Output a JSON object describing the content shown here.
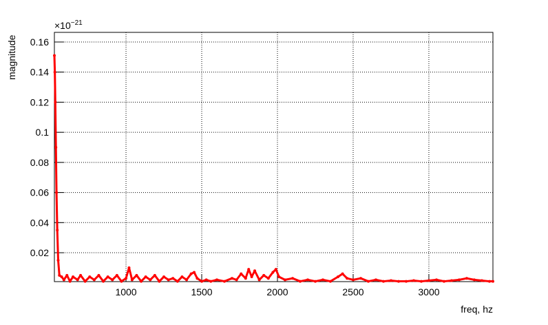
{
  "chart_data": {
    "type": "line",
    "x_label": "freq, hz",
    "y_label": "magnitude",
    "y_multiplier": {
      "base": "×10",
      "exponent": "−21"
    },
    "xlim": [
      527,
      3423
    ],
    "ylim": [
      0.0008,
      0.1664
    ],
    "xticks": [
      1000,
      1500,
      2000,
      2500,
      3000
    ],
    "yticks": [
      0.02,
      0.04,
      0.06,
      0.08,
      0.1,
      0.12,
      0.14,
      0.16
    ],
    "grid": true,
    "x": [
      527,
      530,
      533,
      537,
      541,
      546,
      552,
      560,
      575,
      590,
      610,
      630,
      650,
      680,
      700,
      730,
      760,
      790,
      820,
      850,
      880,
      910,
      940,
      970,
      1000,
      1020,
      1040,
      1070,
      1100,
      1130,
      1160,
      1190,
      1220,
      1250,
      1280,
      1310,
      1340,
      1370,
      1400,
      1430,
      1450,
      1470,
      1500,
      1530,
      1560,
      1600,
      1650,
      1700,
      1730,
      1760,
      1790,
      1810,
      1830,
      1850,
      1880,
      1910,
      1940,
      1970,
      1990,
      2010,
      2050,
      2100,
      2150,
      2200,
      2250,
      2300,
      2350,
      2400,
      2430,
      2460,
      2500,
      2550,
      2600,
      2650,
      2700,
      2750,
      2800,
      2850,
      2900,
      2950,
      3000,
      3050,
      3100,
      3150,
      3200,
      3250,
      3300,
      3350,
      3400,
      3423
    ],
    "series": [
      {
        "color": "#ff0000",
        "values": [
          0.151,
          0.14,
          0.12,
          0.09,
          0.06,
          0.035,
          0.015,
          0.005,
          0.004,
          0.002,
          0.005,
          0.001,
          0.004,
          0.002,
          0.005,
          0.001,
          0.004,
          0.002,
          0.005,
          0.001,
          0.004,
          0.002,
          0.005,
          0.001,
          0.003,
          0.01,
          0.002,
          0.005,
          0.001,
          0.004,
          0.002,
          0.005,
          0.001,
          0.004,
          0.002,
          0.003,
          0.001,
          0.004,
          0.002,
          0.006,
          0.007,
          0.003,
          0.001,
          0.002,
          0.001,
          0.002,
          0.001,
          0.003,
          0.002,
          0.006,
          0.003,
          0.009,
          0.004,
          0.008,
          0.002,
          0.005,
          0.003,
          0.007,
          0.009,
          0.004,
          0.002,
          0.003,
          0.001,
          0.002,
          0.001,
          0.002,
          0.001,
          0.004,
          0.006,
          0.003,
          0.002,
          0.003,
          0.001,
          0.002,
          0.001,
          0.0015,
          0.001,
          0.001,
          0.0015,
          0.001,
          0.0015,
          0.002,
          0.001,
          0.0015,
          0.002,
          0.003,
          0.002,
          0.0015,
          0.001,
          0.001
        ]
      }
    ]
  }
}
